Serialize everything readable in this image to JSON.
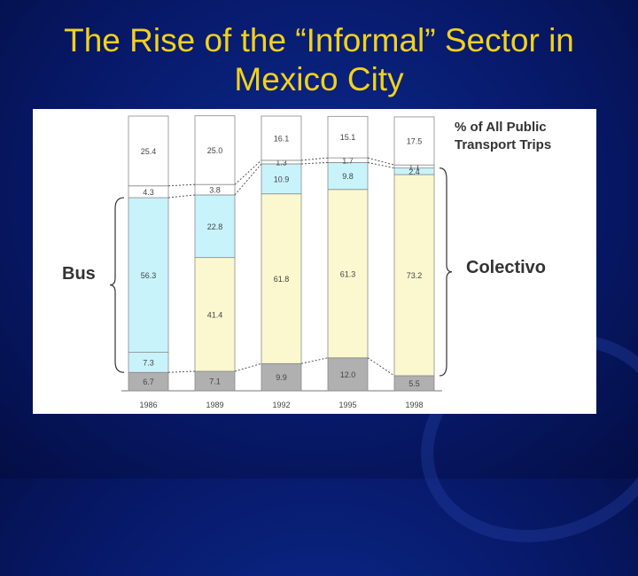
{
  "slide": {
    "title_line1": "The Rise of the “Informal” Sector in",
    "title_line2": "Mexico City"
  },
  "colors": {
    "background": "#07196a",
    "title": "#f2d21b",
    "bus": "#c8f3fb",
    "colectivo": "#fbf8cf",
    "gray": "#b0b0b0",
    "white": "#ffffff"
  },
  "chart_data": {
    "type": "bar",
    "stacked": true,
    "title_lines": [
      "% of All Public",
      "Transport Trips"
    ],
    "categories": [
      "1986",
      "1989",
      "1992",
      "1995",
      "1998"
    ],
    "series": [
      {
        "color": "#b0b0b0",
        "values": [
          6.7,
          7.1,
          9.9,
          12.0,
          5.5
        ]
      },
      {
        "color": "#c8f3fb",
        "values": [
          7.3,
          0,
          0,
          0,
          0
        ]
      },
      {
        "color": "#fbf8cf",
        "values": [
          0,
          41.4,
          61.8,
          61.3,
          73.2
        ]
      },
      {
        "color": "#c8f3fb",
        "values": [
          56.3,
          22.8,
          10.9,
          9.8,
          2.4
        ]
      },
      {
        "color": "#ffffff",
        "values": [
          4.3,
          3.8,
          1.3,
          1.7,
          1.1
        ]
      },
      {
        "color": "#ffffff",
        "values": [
          25.4,
          25.0,
          16.1,
          15.1,
          17.5
        ]
      }
    ],
    "labels": [
      [
        "6.7",
        "7.3",
        "",
        "56.3",
        "4.3",
        "25.4"
      ],
      [
        "7.1",
        "",
        "41.4",
        "22.8",
        "3.8",
        "25.0"
      ],
      [
        "9.9",
        "",
        "61.8",
        "10.9",
        "1.3",
        "16.1"
      ],
      [
        "12.0",
        "",
        "61.3",
        "9.8",
        "1.7",
        "15.1"
      ],
      [
        "5.5",
        "",
        "73.2",
        "2.4",
        "1.1",
        "17.5"
      ]
    ],
    "group_labels": {
      "bus": "Bus",
      "colectivo": "Colectivo"
    },
    "ylim": [
      0,
      100
    ],
    "legend": "top-right"
  }
}
